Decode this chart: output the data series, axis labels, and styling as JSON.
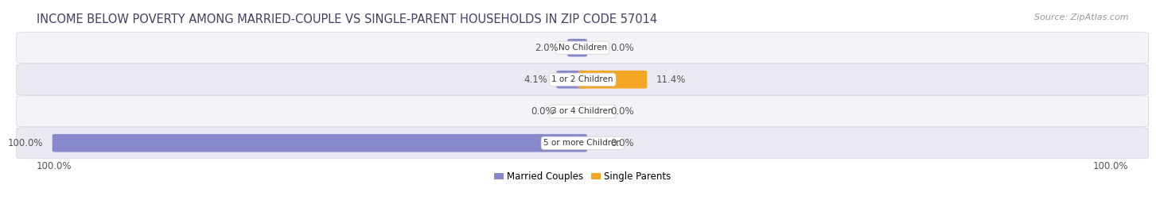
{
  "title": "INCOME BELOW POVERTY AMONG MARRIED-COUPLE VS SINGLE-PARENT HOUSEHOLDS IN ZIP CODE 57014",
  "source": "Source: ZipAtlas.com",
  "categories": [
    "No Children",
    "1 or 2 Children",
    "3 or 4 Children",
    "5 or more Children"
  ],
  "married_values": [
    2.0,
    4.1,
    0.0,
    100.0
  ],
  "single_values": [
    0.0,
    11.4,
    0.0,
    0.0
  ],
  "married_color": "#8888cc",
  "single_color": "#f5a623",
  "row_bg_color_light": "#f4f4f8",
  "row_bg_color_dark": "#eaeaf2",
  "row_border_color": "#d0d0dd",
  "married_label": "Married Couples",
  "single_label": "Single Parents",
  "left_axis_label": "100.0%",
  "right_axis_label": "100.0%",
  "max_value": 100.0,
  "label_fontsize": 8.5,
  "title_fontsize": 10.5,
  "source_fontsize": 8,
  "cat_fontsize": 7.5,
  "background_color": "#ffffff",
  "title_color": "#404060",
  "label_color": "#555555"
}
